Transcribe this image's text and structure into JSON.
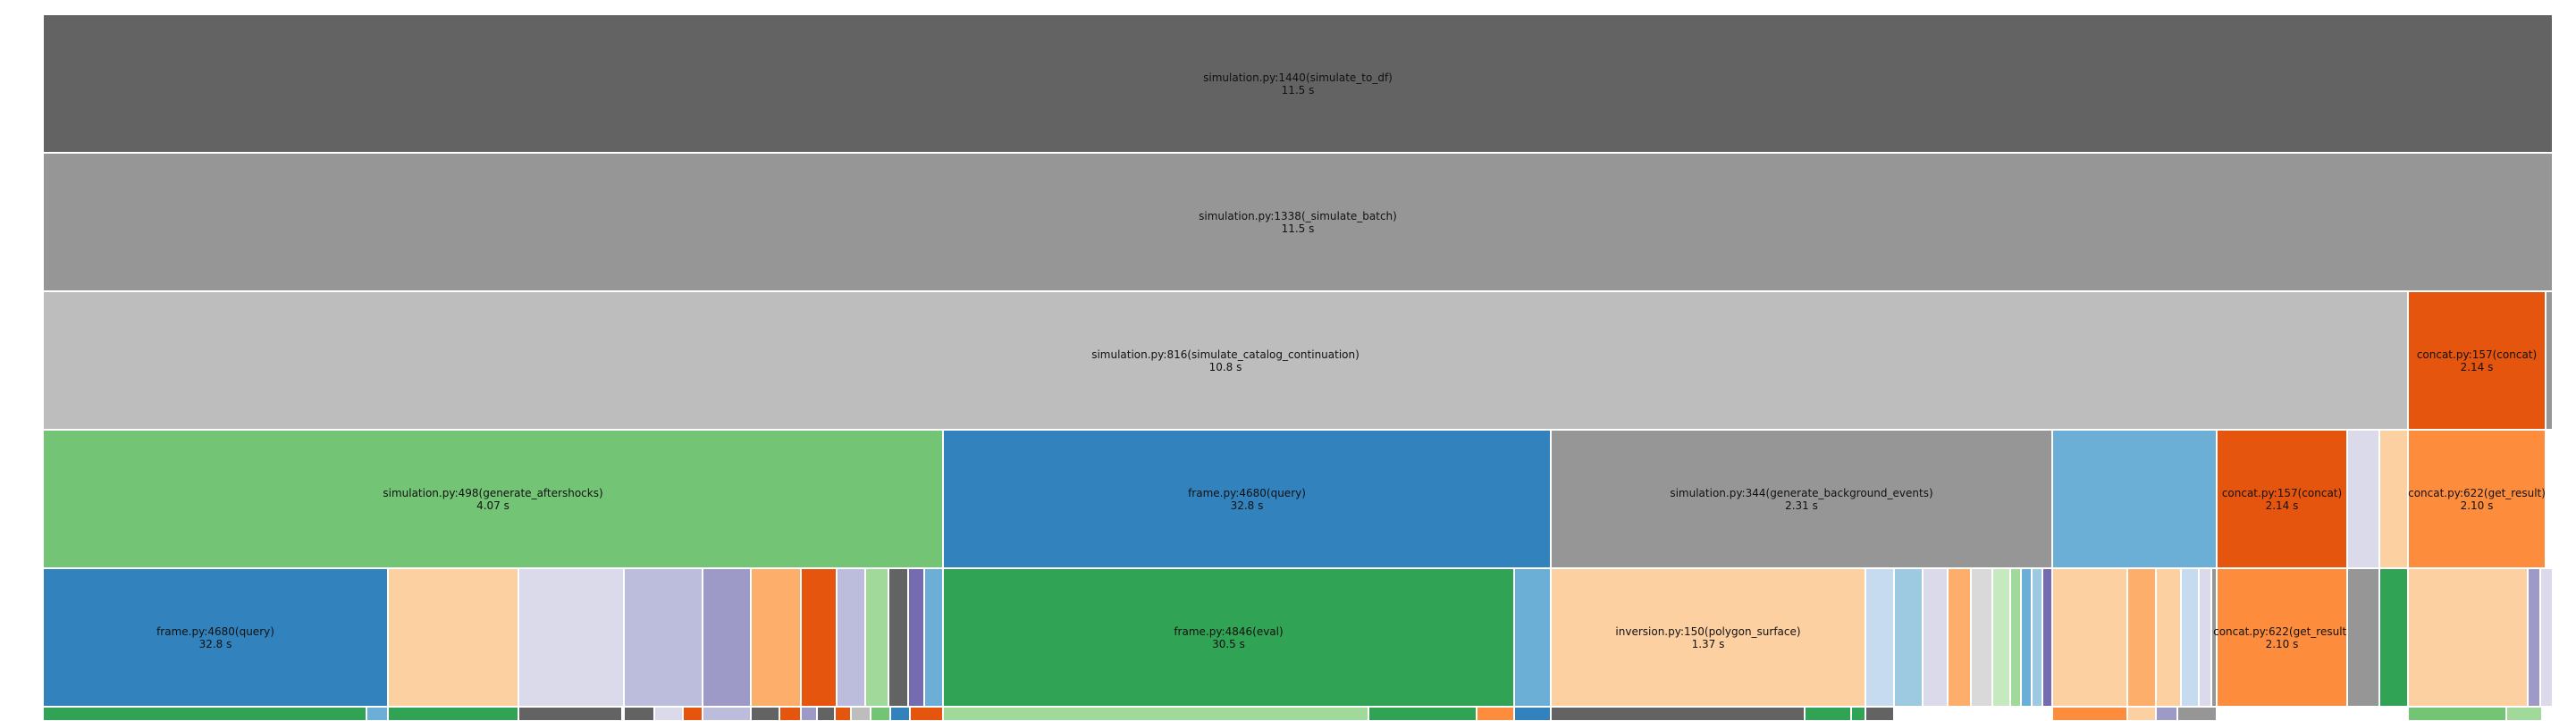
{
  "colors": {
    "dark_gray": "#636363",
    "mid_gray": "#969696",
    "light_gray": "#bdbdbd",
    "green": "#74c476",
    "dark_green": "#31a354",
    "pale_green": "#a1d99b",
    "blue": "#3182bd",
    "light_blue": "#6baed6",
    "pale_blue": "#9ecae1",
    "paler_blue": "#c6dbef",
    "dark_orange": "#e6550d",
    "orange": "#fd8d3c",
    "light_orange": "#fdae6b",
    "pale_orange": "#fdd0a2",
    "purple": "#9e9ac8",
    "light_purple": "#bcbddc",
    "pale_purple": "#dadaeb",
    "dark_purple": "#756bb1"
  },
  "rows": {
    "row0": [
      {
        "name": "simulation.py:1440(simulate_to_df)",
        "time": "11.5 s",
        "color": "#636363"
      }
    ],
    "row1": [
      {
        "name": "simulation.py:1338(_simulate_batch)",
        "time": "11.5 s",
        "color": "#969696"
      }
    ],
    "row2": [
      {
        "name": "simulation.py:816(simulate_catalog_continuation)",
        "time": "10.8 s",
        "color": "#bdbdbd"
      },
      {
        "name": "concat.py:157(concat)",
        "time": "2.14 s",
        "color": "#e6550d"
      },
      {
        "name": "",
        "time": "",
        "color": "#969696"
      }
    ],
    "row3": [
      {
        "name": "simulation.py:498(generate_aftershocks)",
        "time": "4.07 s",
        "color": "#74c476"
      },
      {
        "name": "frame.py:4680(query)",
        "time": "32.8 s",
        "color": "#3182bd"
      },
      {
        "name": "simulation.py:344(generate_background_events)",
        "time": "2.31 s",
        "color": "#969696"
      },
      {
        "name": "",
        "time": "",
        "color": "#6baed6"
      },
      {
        "name": "concat.py:157(concat)",
        "time": "2.14 s",
        "color": "#e6550d"
      },
      {
        "name": "",
        "time": "",
        "color": "#dadaeb"
      },
      {
        "name": "",
        "time": "",
        "color": "#fdd0a2"
      },
      {
        "name": "concat.py:622(get_result)",
        "time": "2.10 s",
        "color": "#fd8d3c"
      }
    ],
    "row4": [
      {
        "name": "frame.py:4680(query)",
        "time": "32.8 s",
        "color": "#3182bd"
      },
      {
        "name": "",
        "time": "",
        "color": "#fdd0a2"
      },
      {
        "name": "",
        "time": "",
        "color": "#dadaeb"
      },
      {
        "name": "",
        "time": "",
        "color": "#bcbddc"
      },
      {
        "name": "",
        "time": "",
        "color": "#9e9ac8"
      },
      {
        "name": "",
        "time": "",
        "color": "#fdae6b"
      },
      {
        "name": "",
        "time": "",
        "color": "#e6550d"
      },
      {
        "name": "",
        "time": "",
        "color": "#bcbddc"
      },
      {
        "name": "",
        "time": "",
        "color": "#a1d99b"
      },
      {
        "name": "",
        "time": "",
        "color": "#636363"
      },
      {
        "name": "",
        "time": "",
        "color": "#756bb1"
      },
      {
        "name": "",
        "time": "",
        "color": "#6baed6"
      },
      {
        "name": "frame.py:4846(eval)",
        "time": "30.5 s",
        "color": "#31a354"
      },
      {
        "name": "",
        "time": "",
        "color": "#6baed6"
      },
      {
        "name": "inversion.py:150(polygon_surface)",
        "time": "1.37 s",
        "color": "#fdd0a2"
      },
      {
        "name": "",
        "time": "",
        "color": "#c6dbef"
      },
      {
        "name": "",
        "time": "",
        "color": "#9ecae1"
      },
      {
        "name": "",
        "time": "",
        "color": "#dadaeb"
      },
      {
        "name": "",
        "time": "",
        "color": "#fdae6b"
      },
      {
        "name": "",
        "time": "",
        "color": "#d9d9d9"
      },
      {
        "name": "",
        "time": "",
        "color": "#c7e9c0"
      },
      {
        "name": "",
        "time": "",
        "color": "#a1d99b"
      },
      {
        "name": "",
        "time": "",
        "color": "#6baed6"
      },
      {
        "name": "",
        "time": "",
        "color": "#9ecae1"
      },
      {
        "name": "",
        "time": "",
        "color": "#756bb1"
      },
      {
        "name": "",
        "time": "",
        "color": "#fdd0a2"
      },
      {
        "name": "",
        "time": "",
        "color": "#fdae6b"
      },
      {
        "name": "",
        "time": "",
        "color": "#fdd0a2"
      },
      {
        "name": "",
        "time": "",
        "color": "#c6dbef"
      },
      {
        "name": "",
        "time": "",
        "color": "#dadaeb"
      },
      {
        "name": "",
        "time": "",
        "color": "#969696"
      },
      {
        "name": "concat.py:622(get_result)",
        "time": "2.10 s",
        "color": "#fd8d3c"
      },
      {
        "name": "",
        "time": "",
        "color": "#969696"
      },
      {
        "name": "",
        "time": "",
        "color": "#31a354"
      },
      {
        "name": "",
        "time": "",
        "color": "#fdd0a2"
      },
      {
        "name": "",
        "time": "",
        "color": "#9e9ac8"
      },
      {
        "name": "",
        "time": "",
        "color": "#dadaeb"
      }
    ],
    "row5": [
      {
        "name": "",
        "time": "",
        "color": "#31a354"
      },
      {
        "name": "",
        "time": "",
        "color": "#6baed6"
      },
      {
        "name": "",
        "time": "",
        "color": "#31a354"
      },
      {
        "name": "",
        "time": "",
        "color": "#636363"
      },
      {
        "name": "",
        "time": "",
        "color": "#636363"
      },
      {
        "name": "",
        "time": "",
        "color": "#dadaeb"
      },
      {
        "name": "",
        "time": "",
        "color": "#e6550d"
      },
      {
        "name": "",
        "time": "",
        "color": "#bcbddc"
      },
      {
        "name": "",
        "time": "",
        "color": "#636363"
      },
      {
        "name": "",
        "time": "",
        "color": "#e6550d"
      },
      {
        "name": "",
        "time": "",
        "color": "#9e9ac8"
      },
      {
        "name": "",
        "time": "",
        "color": "#636363"
      },
      {
        "name": "",
        "time": "",
        "color": "#e6550d"
      },
      {
        "name": "",
        "time": "",
        "color": "#bdbdbd"
      },
      {
        "name": "",
        "time": "",
        "color": "#74c476"
      },
      {
        "name": "",
        "time": "",
        "color": "#3182bd"
      },
      {
        "name": "",
        "time": "",
        "color": "#e6550d"
      },
      {
        "name": "",
        "time": "",
        "color": "#a1d99b"
      },
      {
        "name": "",
        "time": "",
        "color": "#31a354"
      },
      {
        "name": "",
        "time": "",
        "color": "#fd8d3c"
      },
      {
        "name": "",
        "time": "",
        "color": "#3182bd"
      },
      {
        "name": "",
        "time": "",
        "color": "#636363"
      },
      {
        "name": "",
        "time": "",
        "color": "#31a354"
      },
      {
        "name": "",
        "time": "",
        "color": "#31a354"
      },
      {
        "name": "",
        "time": "",
        "color": "#636363"
      },
      {
        "name": "",
        "time": "",
        "color": "#fd8d3c"
      },
      {
        "name": "",
        "time": "",
        "color": "#fdd0a2"
      },
      {
        "name": "",
        "time": "",
        "color": "#9e9ac8"
      },
      {
        "name": "",
        "time": "",
        "color": "#969696"
      },
      {
        "name": "",
        "time": "",
        "color": "#74c476"
      },
      {
        "name": "",
        "time": "",
        "color": "#a1d99b"
      }
    ]
  }
}
